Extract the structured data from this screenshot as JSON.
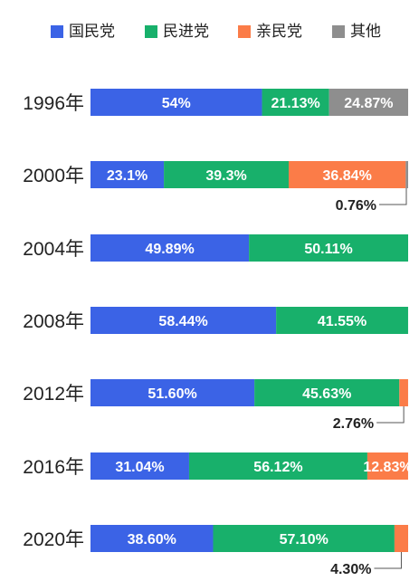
{
  "chart_data": {
    "type": "bar",
    "stacked": true,
    "orientation": "horizontal",
    "categories": [
      "1996年",
      "2000年",
      "2004年",
      "2008年",
      "2012年",
      "2016年",
      "2020年"
    ],
    "series": [
      {
        "name": "国民党",
        "color": "#3b63e6",
        "values": [
          54,
          23.1,
          49.89,
          58.44,
          51.6,
          31.04,
          38.6
        ],
        "labels": [
          "54%",
          "23.1%",
          "49.89%",
          "58.44%",
          "51.60%",
          "31.04%",
          "38.60%"
        ]
      },
      {
        "name": "民进党",
        "color": "#18b06b",
        "values": [
          21.13,
          39.3,
          50.11,
          41.55,
          45.63,
          56.12,
          57.1
        ],
        "labels": [
          "21.13%",
          "39.3%",
          "50.11%",
          "41.55%",
          "45.63%",
          "56.12%",
          "57.10%"
        ]
      },
      {
        "name": "亲民党",
        "color": "#fb7c48",
        "values": [
          null,
          36.84,
          null,
          null,
          2.76,
          12.83,
          4.3
        ],
        "labels": [
          "",
          "36.84%",
          "",
          "",
          "2.76%",
          "12.83%",
          "4.30%"
        ]
      },
      {
        "name": "其他",
        "color": "#8e8e8e",
        "values": [
          24.87,
          0.76,
          null,
          null,
          null,
          null,
          null
        ],
        "labels": [
          "24.87%",
          "0.76%",
          "",
          "",
          "",
          "",
          ""
        ]
      }
    ],
    "xlim": [
      0,
      100
    ],
    "legend": "top",
    "grid": false
  }
}
